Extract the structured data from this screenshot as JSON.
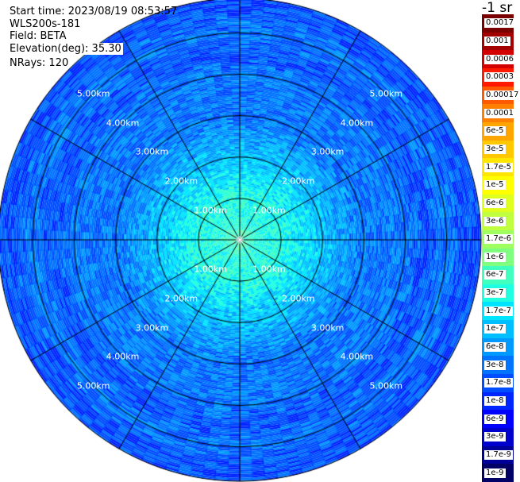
{
  "header": {
    "start_time": "Start time: 2023/08/19 08:53:57",
    "station": "WLS200s-181",
    "field": "Field: BETA",
    "elevation": "Elevation(deg): 35.30",
    "nrays": "NRays: 120"
  },
  "colorbar": {
    "unit": "-1 sr",
    "labels": [
      "0.0017",
      "0.001",
      "0.0006",
      "0.0003",
      "0.00017",
      "0.0001",
      "6e-5",
      "3e-5",
      "1.7e-5",
      "1e-5",
      "6e-6",
      "3e-6",
      "1.7e-6",
      "1e-6",
      "6e-7",
      "3e-7",
      "1.7e-7",
      "1e-7",
      "6e-8",
      "3e-8",
      "1.7e-8",
      "1e-8",
      "6e-9",
      "3e-9",
      "1.7e-9",
      "1e-9"
    ],
    "colors": [
      "#7a0000",
      "#a30000",
      "#d40000",
      "#ff1a00",
      "#ff5a00",
      "#ff7f00",
      "#ffa500",
      "#ffc800",
      "#ffe600",
      "#ffff00",
      "#dfff20",
      "#bfff40",
      "#9fff60",
      "#7fff7f",
      "#40ffbf",
      "#20ffdf",
      "#00e5ff",
      "#00bfff",
      "#0099ff",
      "#0073ff",
      "#004dff",
      "#0026ff",
      "#0000ff",
      "#0000cc",
      "#000099",
      "#000066"
    ]
  },
  "chart_data": {
    "type": "heatmap",
    "subtype": "ppi-polar",
    "field": "BETA",
    "elevation_deg": 35.3,
    "n_rays": 120,
    "range_rings_km": [
      1.0,
      2.0,
      3.0,
      4.0,
      5.0
    ],
    "ring_labels": [
      "1.00km",
      "2.00km",
      "3.00km",
      "4.00km",
      "5.00km"
    ],
    "max_range_km": 5.83,
    "spokes_deg": [
      0,
      30,
      60,
      90,
      120,
      150,
      180,
      210,
      240,
      270,
      300,
      330
    ],
    "radial_profile": {
      "range_km": [
        0.0,
        0.5,
        1.0,
        1.5,
        2.0,
        2.5,
        3.0,
        3.5,
        4.0,
        4.5,
        5.0,
        5.5,
        5.83
      ],
      "color_index": [
        14,
        15,
        15,
        16,
        17,
        18,
        19,
        19,
        19,
        20,
        19,
        20,
        20
      ]
    },
    "colorscale": "log",
    "vmin": "1e-9",
    "vmax": "0.0017"
  }
}
